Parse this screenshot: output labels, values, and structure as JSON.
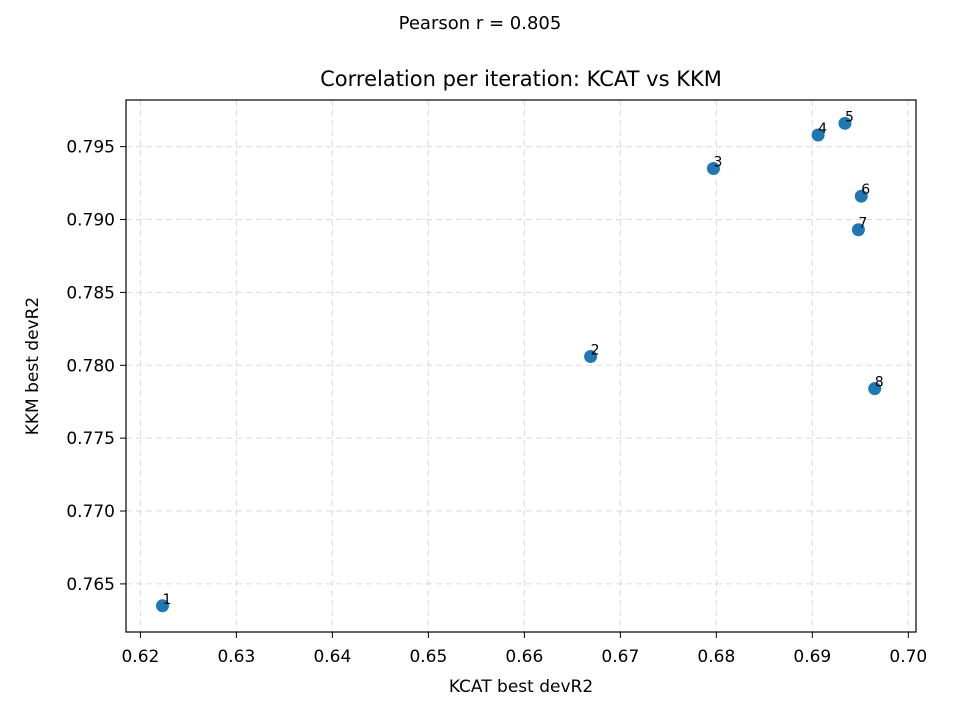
{
  "suptitle": "Pearson r = 0.805",
  "chart_data": {
    "type": "scatter",
    "title": "Correlation per iteration: KCAT vs KKM",
    "xlabel": "KCAT best devR2",
    "ylabel": "KKM best devR2",
    "xlim": [
      0.6185,
      0.7008
    ],
    "ylim": [
      0.7617,
      0.7982
    ],
    "xticks": [
      0.62,
      0.63,
      0.64,
      0.65,
      0.66,
      0.67,
      0.68,
      0.69,
      0.7
    ],
    "xtick_labels": [
      "0.62",
      "0.63",
      "0.64",
      "0.65",
      "0.66",
      "0.67",
      "0.68",
      "0.69",
      "0.70"
    ],
    "yticks": [
      0.765,
      0.77,
      0.775,
      0.78,
      0.785,
      0.79,
      0.795
    ],
    "ytick_labels": [
      "0.765",
      "0.770",
      "0.775",
      "0.780",
      "0.785",
      "0.790",
      "0.795"
    ],
    "grid": true,
    "marker_color": "#1f77b4",
    "points": [
      {
        "label": "1",
        "x": 0.6223,
        "y": 0.7635
      },
      {
        "label": "2",
        "x": 0.6669,
        "y": 0.7806
      },
      {
        "label": "3",
        "x": 0.6797,
        "y": 0.7935
      },
      {
        "label": "4",
        "x": 0.6906,
        "y": 0.7958
      },
      {
        "label": "5",
        "x": 0.6934,
        "y": 0.7966
      },
      {
        "label": "6",
        "x": 0.6951,
        "y": 0.7916
      },
      {
        "label": "7",
        "x": 0.6948,
        "y": 0.7893
      },
      {
        "label": "8",
        "x": 0.6965,
        "y": 0.7784
      }
    ]
  }
}
